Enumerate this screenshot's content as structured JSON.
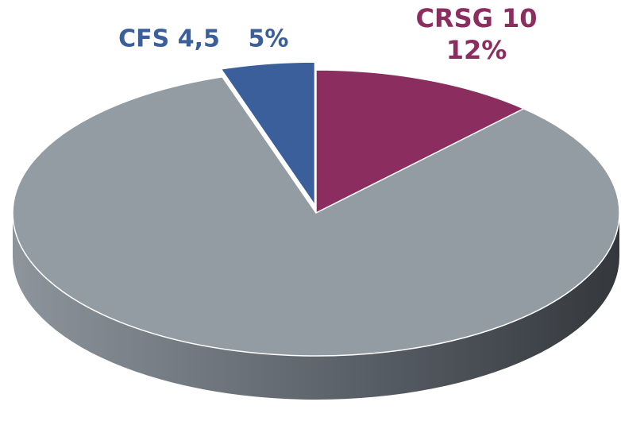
{
  "chart_data": {
    "type": "pie",
    "categories": [
      "CRSG 10",
      null,
      "CFS 4,5"
    ],
    "values": [
      12,
      83,
      5
    ],
    "value_labels": [
      "12%",
      null,
      "5%"
    ],
    "colors": [
      "#8b2d5e",
      "#939ca3",
      "#3a5f9a"
    ]
  }
}
